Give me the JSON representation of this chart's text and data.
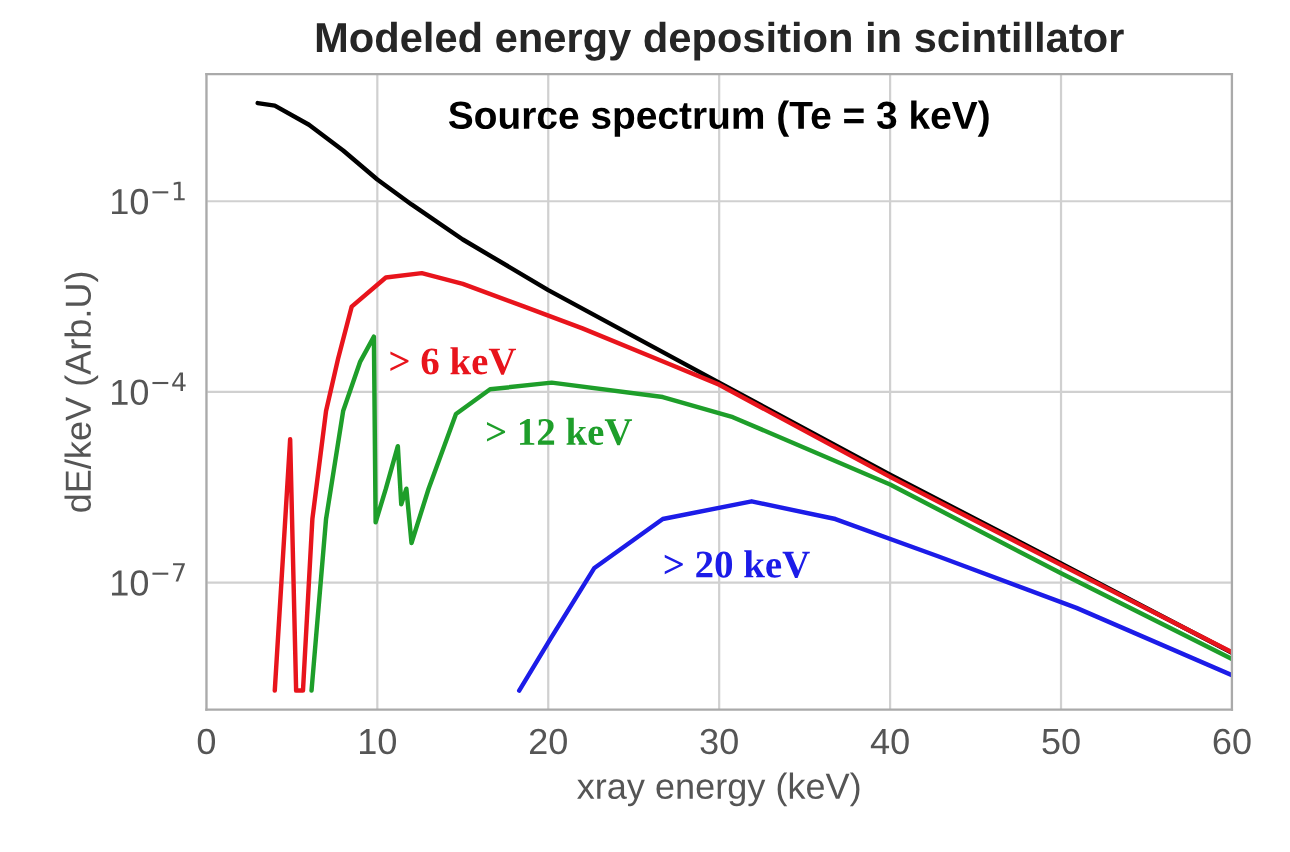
{
  "chart_data": {
    "type": "line",
    "title": "Modeled energy deposition in scintillator",
    "xlabel": "xray energy (keV)",
    "ylabel": "dE/keV (Arb.U)",
    "log": "y",
    "xlim": [
      0,
      60
    ],
    "xticks": [
      0,
      10,
      20,
      30,
      40,
      50,
      60
    ],
    "ylim": [
      1e-09,
      10
    ],
    "yticks": [
      {
        "value": 0.1,
        "label": "10$^{−1}$"
      },
      {
        "value": 0.0001,
        "label": "10$^{−4}$"
      },
      {
        "value": 1e-07,
        "label": "10$^{−7}$"
      }
    ],
    "grid": true,
    "legend": false,
    "marker": "none",
    "line_style": "solid",
    "series": [
      {
        "name": "Source spectrum (Te = 3 keV)",
        "color": "#000000",
        "x": [
          3,
          4,
          6,
          8,
          10,
          12,
          15,
          20,
          30,
          40,
          50,
          60
        ],
        "values": [
          3.5,
          3.2,
          1.6,
          0.63,
          0.22,
          0.089,
          0.025,
          0.004,
          0.00014,
          5e-06,
          2e-07,
          7.9e-09
        ]
      },
      {
        "name": "> 6 keV",
        "color": "#e8141c",
        "x": [
          4,
          4.9,
          5.25,
          5.65,
          6.2,
          7,
          7.7,
          8.5,
          10.5,
          12.6,
          15,
          18.6,
          22,
          27,
          30,
          40,
          50,
          60
        ],
        "values": [
          2e-09,
          1.8e-05,
          2e-09,
          2e-09,
          1e-06,
          5e-05,
          0.00033,
          0.0022,
          0.0063,
          0.0074,
          0.005,
          0.0022,
          0.001,
          0.00028,
          0.00013,
          4.6e-06,
          1.9e-07,
          8e-09
        ]
      },
      {
        "name": "> 12 keV",
        "color": "#1e9e2a",
        "x": [
          6.15,
          7,
          8,
          9,
          9.8,
          9.9,
          10.5,
          11.2,
          11.4,
          11.7,
          12,
          13,
          14.6,
          16.6,
          20.2,
          26.7,
          30.8,
          40,
          50,
          60
        ],
        "values": [
          2e-09,
          1e-06,
          5e-05,
          0.0003,
          0.00074,
          8.9e-07,
          3e-06,
          1.4e-05,
          1.7e-06,
          3e-06,
          4.2e-07,
          3e-06,
          4.5e-05,
          0.00011,
          0.00014,
          8.3e-05,
          4e-05,
          3.5e-06,
          1.4e-07,
          6.3e-09
        ]
      },
      {
        "name": "> 20 keV",
        "color": "#1c1ce8",
        "x": [
          18.3,
          20.2,
          22.7,
          26.7,
          31.9,
          36.8,
          42.8,
          50.9,
          60
        ],
        "values": [
          2e-09,
          1.4e-08,
          1.7e-07,
          1e-06,
          1.9e-06,
          1e-06,
          2.6e-07,
          4e-08,
          3.5e-09
        ]
      }
    ]
  }
}
